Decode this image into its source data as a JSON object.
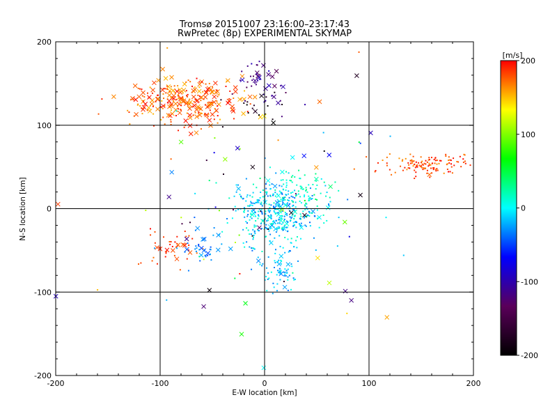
{
  "chart_data": {
    "type": "scatter",
    "title_line1": "Tromsø 20151007 23:16:00–23:17:43",
    "title_line2": "RwPretec (8p) EXPERIMENTAL SKYMAP",
    "xlabel": "E-W location [km]",
    "ylabel": "N-S location [km]",
    "xlim": [
      -200,
      200
    ],
    "ylim": [
      -200,
      200
    ],
    "grid_lines": [
      -100,
      0,
      100
    ],
    "xticks": [
      "-200",
      "-100",
      "0",
      "100",
      "200"
    ],
    "yticks": [
      "-200",
      "-100",
      "0",
      "100",
      "200"
    ],
    "grid": true,
    "colorbar": {
      "label": "[m/s]",
      "range": [
        -200,
        200
      ],
      "ticks": [
        "200",
        "100",
        "0",
        "-100",
        "-200"
      ],
      "colormap": [
        "#000000",
        "#5a005a",
        "#0000ff",
        "#00ffff",
        "#00ff00",
        "#ffff00",
        "#ff0000"
      ]
    },
    "marker_legend": {
      "cross": "x marker",
      "dot": "small dot"
    },
    "clusters": [
      {
        "name": "north-west red",
        "cx": -75,
        "cy": 128,
        "sx": 28,
        "sy": 14,
        "n": 280,
        "v": [
          150,
          200
        ],
        "cross": 0.45
      },
      {
        "name": "north blue",
        "cx": -5,
        "cy": 150,
        "sx": 12,
        "sy": 14,
        "n": 45,
        "v": [
          -140,
          -90
        ],
        "cross": 0.3
      },
      {
        "name": "north dark",
        "cx": -5,
        "cy": 120,
        "sx": 12,
        "sy": 10,
        "n": 16,
        "v": [
          -210,
          -170
        ],
        "cross": 0.3
      },
      {
        "name": "central cyan",
        "cx": 10,
        "cy": -5,
        "sx": 22,
        "sy": 20,
        "n": 420,
        "v": [
          -40,
          20
        ],
        "cross": 0.08
      },
      {
        "name": "central green",
        "cx": 35,
        "cy": 20,
        "sx": 15,
        "sy": 15,
        "n": 70,
        "v": [
          0,
          40
        ],
        "cross": 0.05
      },
      {
        "name": "south cyan",
        "cx": 12,
        "cy": -75,
        "sx": 9,
        "sy": 12,
        "n": 70,
        "v": [
          -40,
          10
        ],
        "cross": 0.05
      },
      {
        "name": "east red",
        "cx": 155,
        "cy": 52,
        "sx": 22,
        "sy": 6,
        "n": 130,
        "v": [
          160,
          200
        ],
        "cross": 0.02
      },
      {
        "name": "south-west red",
        "cx": -90,
        "cy": -45,
        "sx": 14,
        "sy": 10,
        "n": 45,
        "v": [
          170,
          200
        ],
        "cross": 0.3
      },
      {
        "name": "south-west cyan",
        "cx": -60,
        "cy": -45,
        "sx": 10,
        "sy": 10,
        "n": 35,
        "v": [
          -50,
          -20
        ],
        "cross": 0.15
      },
      {
        "name": "scattered",
        "cx": 0,
        "cy": 0,
        "sx": 80,
        "sy": 80,
        "n": 90,
        "v": [
          -200,
          200
        ],
        "cross": 0.5
      }
    ]
  }
}
